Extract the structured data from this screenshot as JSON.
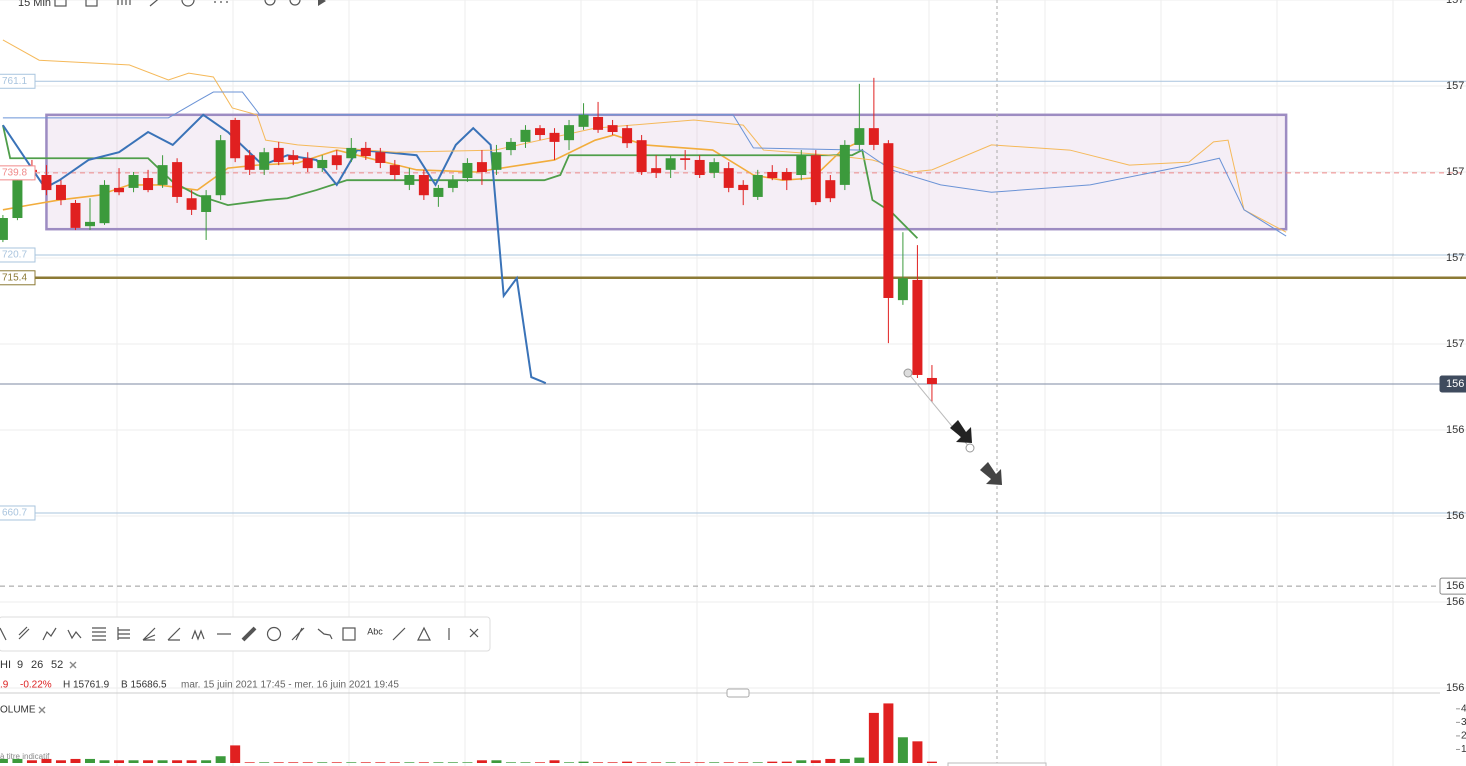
{
  "toolbar": {
    "interval": "15 Min"
  },
  "drawing_tools": {
    "text_tool": "Abc"
  },
  "indicator": {
    "name": "HI",
    "params": [
      "9",
      "26",
      "52"
    ]
  },
  "quote": {
    "last_fragment": ".9",
    "change_pct": "-0.22%",
    "high": "H 15761.9",
    "low": "B 15686.5",
    "period": "mar. 15 juin 2021 17:45 - mer. 16 juin 2021 19:45"
  },
  "disclaimer": "à titre indicatif",
  "chart_data": {
    "type": "candlestick",
    "up_color": "#3c9a3c",
    "down_color": "#e02020",
    "xlim": [
      -0.2,
      99
    ],
    "ylim": [
      15620,
      15780
    ],
    "yticks": [
      {
        "value": 15780,
        "label": "157"
      },
      {
        "value": 15760,
        "label": "157"
      },
      {
        "value": 15740,
        "label": "157"
      },
      {
        "value": 15720,
        "label": "157"
      },
      {
        "value": 15700,
        "label": "157"
      },
      {
        "value": 15680,
        "label": "156"
      },
      {
        "value": 15660,
        "label": "156"
      },
      {
        "value": 15640,
        "label": "156"
      },
      {
        "value": 15620,
        "label": "156"
      }
    ],
    "grid": true,
    "open": [
      15724.2,
      15729.3,
      15740.5,
      15739.3,
      15737.0,
      15732.8,
      15727.4,
      15728.1,
      15736.3,
      15736.3,
      15738.6,
      15737.0,
      15742.3,
      15733.9,
      15730.7,
      15734.6,
      15752.1,
      15743.9,
      15740.5,
      15745.6,
      15743.9,
      15743.2,
      15740.9,
      15743.9,
      15743.2,
      15745.6,
      15744.6,
      15741.6,
      15737.0,
      15739.3,
      15734.2,
      15736.3,
      15738.6,
      15742.3,
      15740.5,
      15745.1,
      15747.0,
      15750.2,
      15749.1,
      15747.4,
      15750.5,
      15752.8,
      15750.9,
      15750.2,
      15747.4,
      15740.9,
      15740.5,
      15743.2,
      15742.8,
      15739.8,
      15740.9,
      15737.0,
      15734.2,
      15740.0,
      15740.0,
      15739.3,
      15743.9,
      15738.1,
      15737.0,
      15746.3,
      15750.2,
      15746.7,
      15710.2,
      15714.9,
      15692.1
    ],
    "high": [
      15730.0,
      15739.3,
      15742.8,
      15741.6,
      15738.1,
      15733.5,
      15733.9,
      15738.1,
      15740.9,
      15740.0,
      15740.5,
      15743.9,
      15743.2,
      15735.8,
      15735.8,
      15748.6,
      15752.6,
      15745.1,
      15745.6,
      15747.0,
      15745.1,
      15744.6,
      15743.9,
      15745.1,
      15747.9,
      15747.0,
      15745.6,
      15742.8,
      15740.9,
      15740.5,
      15737.0,
      15739.3,
      15743.2,
      15745.1,
      15746.3,
      15747.9,
      15750.9,
      15750.9,
      15750.2,
      15752.1,
      15756.0,
      15756.3,
      15752.1,
      15750.9,
      15748.6,
      15743.9,
      15743.9,
      15745.1,
      15743.9,
      15743.2,
      15742.3,
      15738.1,
      15740.5,
      15741.6,
      15740.9,
      15745.1,
      15745.1,
      15739.3,
      15747.4,
      15760.5,
      15761.9,
      15747.4,
      15726.0,
      15723.0,
      15695.1
    ],
    "low": [
      15723.7,
      15728.8,
      15738.1,
      15734.6,
      15732.3,
      15726.5,
      15726.5,
      15727.7,
      15734.6,
      15735.3,
      15735.3,
      15736.3,
      15732.8,
      15730.0,
      15724.2,
      15733.5,
      15742.3,
      15739.3,
      15739.3,
      15741.6,
      15741.6,
      15740.0,
      15740.0,
      15740.5,
      15742.3,
      15742.8,
      15740.9,
      15738.1,
      15735.8,
      15733.5,
      15731.9,
      15735.3,
      15737.7,
      15737.0,
      15739.3,
      15743.9,
      15745.6,
      15747.4,
      15742.8,
      15745.1,
      15749.8,
      15749.1,
      15748.6,
      15745.6,
      15739.3,
      15738.6,
      15738.6,
      15740.5,
      15738.6,
      15738.6,
      15735.3,
      15732.3,
      15733.5,
      15738.1,
      15735.8,
      15738.1,
      15732.3,
      15733.0,
      15735.8,
      15745.1,
      15745.1,
      15700.2,
      15709.1,
      15692.1,
      15686.5
    ],
    "close": [
      15729.3,
      15738.1,
      15740.0,
      15735.8,
      15733.5,
      15727.0,
      15728.4,
      15737.0,
      15735.3,
      15739.3,
      15735.8,
      15741.6,
      15734.2,
      15731.2,
      15734.6,
      15747.4,
      15743.2,
      15740.5,
      15744.6,
      15742.3,
      15742.8,
      15740.9,
      15742.8,
      15741.6,
      15745.6,
      15743.7,
      15742.1,
      15739.3,
      15739.3,
      15734.6,
      15736.3,
      15738.1,
      15742.1,
      15740.0,
      15744.6,
      15747.0,
      15749.8,
      15748.6,
      15747.0,
      15750.9,
      15753.3,
      15749.8,
      15749.3,
      15746.7,
      15740.0,
      15739.8,
      15743.2,
      15742.8,
      15739.3,
      15742.3,
      15736.3,
      15735.8,
      15739.3,
      15738.6,
      15738.1,
      15743.9,
      15733.0,
      15733.9,
      15746.3,
      15750.2,
      15746.3,
      15710.7,
      15715.3,
      15692.8,
      15690.7
    ],
    "lines": [
      {
        "color": "#f2ad3d",
        "width": 1.6,
        "x": [
          0,
          1.8,
          3.9,
          6.6,
          8.7,
          10.7,
          13.4,
          15.5,
          17.5,
          20.3,
          23,
          25.7,
          28.5,
          32.6,
          38,
          40.8,
          42.1,
          44.2,
          48.9,
          51.7,
          53.7,
          55.8,
          57.8,
          59.2
        ],
        "values": [
          15731.2,
          15732.3,
          15733.5,
          15734.6,
          15737.0,
          15737.0,
          15735.8,
          15740.9,
          15741.6,
          15742.1,
          15745.1,
          15742.8,
          15740.5,
          15740.0,
          15742.8,
          15747.4,
          15748.6,
          15746.3,
          15745.1,
          15739.3,
          15738.1,
          15738.6,
          15745.1,
          15747.4
        ]
      },
      {
        "color": "#4f9e4a",
        "width": 1.8,
        "x": [
          0,
          0.5,
          10,
          11.7,
          13.4,
          15.5,
          18.2,
          19.6,
          21.6,
          23.7,
          33.2,
          37.3,
          38.4,
          39,
          50.3,
          58.5,
          59.2,
          59.9,
          61.2,
          63
        ],
        "values": [
          15750.9,
          15743.2,
          15743.2,
          15737.7,
          15734.6,
          15732.3,
          15733.5,
          15733.9,
          15735.8,
          15738.1,
          15738.1,
          15738.1,
          15739.3,
          15743.9,
          15743.9,
          15743.9,
          15745.1,
          15733.5,
          15730.7,
          15724.6
        ]
      },
      {
        "color": "#3a73b8",
        "width": 2,
        "x": [
          0,
          2.9,
          3.9,
          5.9,
          8,
          10,
          11.7,
          13.8,
          15.5,
          17.9,
          19.6,
          21.6,
          23,
          24.4,
          26.4,
          28.5,
          29.8,
          31.2,
          32.4,
          33.6,
          34.5,
          35.4,
          36.4,
          37.4
        ],
        "values": [
          15750.9,
          15736.3,
          15738.1,
          15742.8,
          15744.6,
          15749.3,
          15746.3,
          15753.3,
          15749.3,
          15741.6,
          15743.9,
          15742.8,
          15737.0,
          15745.1,
          15744.6,
          15743.9,
          15737.0,
          15746.3,
          15750.2,
          15746.3,
          15711.2,
          15715.3,
          15692.3,
          15690.9
        ]
      },
      {
        "color": "#f5b95a",
        "width": 1,
        "x": [
          0,
          2.5,
          8.7,
          11.4,
          12.8,
          14.5,
          15.8,
          17.5,
          18.1,
          20.3,
          27.1,
          33.9,
          40.8,
          47.6,
          51,
          52.4,
          57.1,
          59.9,
          62.6,
          64,
          68.1,
          73.5,
          77.6,
          81.7,
          83.4,
          84.4,
          85.5,
          88.4
        ],
        "values": [
          15770.7,
          15766.0,
          15764.9,
          15761.4,
          15763.0,
          15762.1,
          15754.9,
          15753.3,
          15747.4,
          15746.3,
          15744.6,
          15745.1,
          15750.2,
          15752.1,
          15750.9,
          15745.1,
          15743.9,
          15742.8,
          15740.0,
          15740.5,
          15746.3,
          15745.1,
          15741.6,
          15742.3,
          15747.0,
          15747.4,
          15731.2,
          15726.0
        ]
      },
      {
        "color": "#6b93d6",
        "width": 1,
        "x": [
          0,
          11.4,
          13.5,
          14.5,
          16.5,
          17.7,
          50.3,
          51.7,
          59.2,
          61.2,
          64.6,
          68.1,
          74.9,
          81.7,
          83.8,
          85.5,
          88.4
        ],
        "values": [
          15752.6,
          15752.6,
          15756.7,
          15758.6,
          15758.6,
          15753.3,
          15753.3,
          15745.6,
          15745.1,
          15740.5,
          15737.0,
          15735.3,
          15737.0,
          15741.6,
          15743.2,
          15731.2,
          15725.1
        ]
      }
    ],
    "levels": [
      {
        "value": 15761.1,
        "label": "761.1",
        "color": "#a9c4de",
        "style": "solid",
        "width": 1
      },
      {
        "value": 15739.8,
        "label": "739.8",
        "color": "#f08a8a",
        "style": "dashed",
        "width": 1
      },
      {
        "value": 15720.7,
        "label": "720.7",
        "color": "#a9c4de",
        "style": "solid",
        "width": 1
      },
      {
        "value": 15715.4,
        "label": "715.4",
        "color": "#8c7a35",
        "style": "solid",
        "width": 2.5
      },
      {
        "value": 15660.7,
        "label": "660.7",
        "color": "#a9c4de",
        "style": "solid",
        "width": 1
      },
      {
        "value": 15690.7,
        "color": "#7d8aa3",
        "style": "solid",
        "width": 1
      },
      {
        "value": 15643.7,
        "color": "#9a9a9a",
        "style": "dashed",
        "width": 1
      }
    ],
    "markers": [
      {
        "value": 15690.7,
        "label": "156",
        "color": "#3f4b5e"
      },
      {
        "value": 15643.7,
        "label": "156",
        "color": "#ffffff"
      }
    ],
    "rectangle": {
      "x": [
        3.0,
        88.4
      ],
      "y": [
        15753.3,
        15726.7
      ],
      "stroke": "#9d8cc2",
      "fill": "rgba(190,150,200,0.16)"
    },
    "volume": {
      "title": "OLUME",
      "ylim": [
        0,
        4.8
      ],
      "yticks": [
        1,
        2,
        3,
        4
      ],
      "values": [
        0.3,
        0.3,
        0.2,
        0.3,
        0.2,
        0.3,
        0.3,
        0.2,
        0.2,
        0.2,
        0.2,
        0.2,
        0.2,
        0.2,
        0.2,
        0.5,
        1.3,
        0.05,
        0.05,
        0.05,
        0.05,
        0.05,
        0.05,
        0.05,
        0.05,
        0.05,
        0.05,
        0.05,
        0.05,
        0.05,
        0.05,
        0.05,
        0.05,
        0.2,
        0.2,
        0.05,
        0.05,
        0.05,
        0.2,
        0.05,
        0.1,
        0.05,
        0.05,
        0.1,
        0.05,
        0.05,
        0.05,
        0.05,
        0.05,
        0.05,
        0.05,
        0.05,
        0.05,
        0.1,
        0.1,
        0.2,
        0.2,
        0.3,
        0.3,
        0.4,
        3.7,
        4.4,
        1.9,
        1.6,
        0.1
      ]
    }
  }
}
